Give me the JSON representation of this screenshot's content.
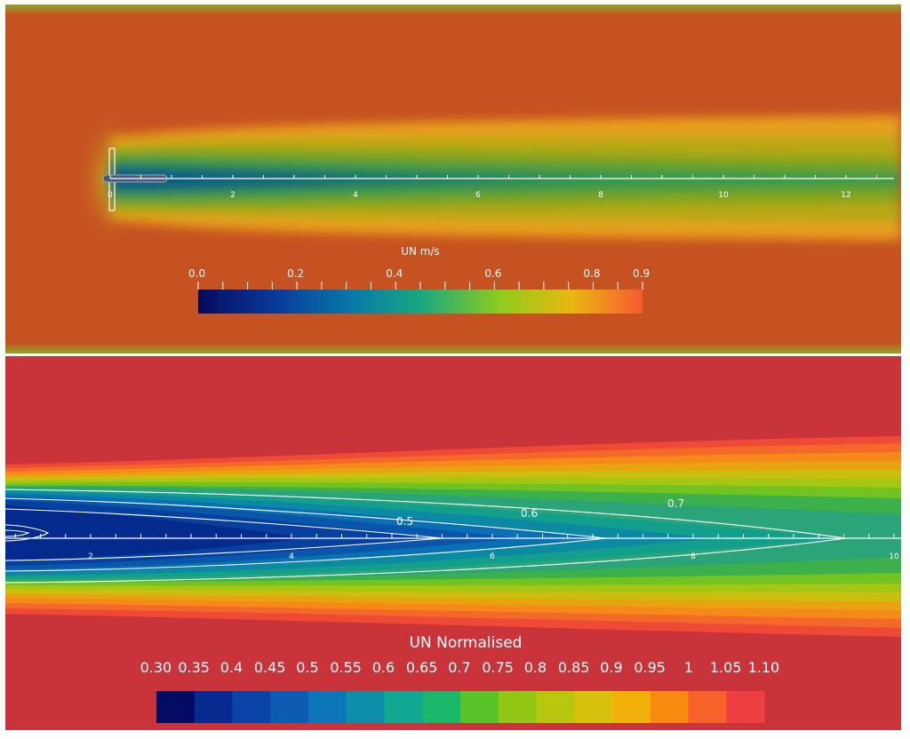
{
  "top_view": {
    "color_bar_title": "UN m/s",
    "color_bar_ticks": [
      "0.0",
      "0.2",
      "0.4",
      "0.6",
      "0.8",
      "0.9"
    ],
    "color_bar_range": [
      0.0,
      0.9
    ],
    "axis_tick_labels": [
      "0",
      "2",
      "4",
      "6",
      "8",
      "10",
      "12"
    ],
    "colors": {
      "background": "#c65222",
      "wake_core": "#16706e",
      "colormap": [
        "#050a5e",
        "#0a3c9c",
        "#0a7aa8",
        "#18a880",
        "#8fcb1e",
        "#e8b810",
        "#f85a30"
      ]
    }
  },
  "bottom_view": {
    "color_bar_title": "UN Normalised",
    "color_bar_ticks": [
      "0.30",
      "0.35",
      "0.4",
      "0.45",
      "0.5",
      "0.55",
      "0.6",
      "0.65",
      "0.7",
      "0.75",
      "0.8",
      "0.85",
      "0.9",
      "0.95",
      "1",
      "1.05",
      "1.10"
    ],
    "color_bar_bands": [
      "#030a62",
      "#062a90",
      "#0a44a6",
      "#0c5cb4",
      "#0c76b8",
      "#0c90a8",
      "#10a890",
      "#1cb66a",
      "#58c42a",
      "#92c814",
      "#b8c60e",
      "#d6c20c",
      "#f2b00a",
      "#f88a12",
      "#f6622a",
      "#ee4040"
    ],
    "contour_labels": [
      "0.5",
      "0.6",
      "0.7"
    ],
    "axis_tick_labels": [
      "2",
      "4",
      "6",
      "8",
      "10"
    ],
    "colors": {
      "background": "#c8343a"
    }
  }
}
